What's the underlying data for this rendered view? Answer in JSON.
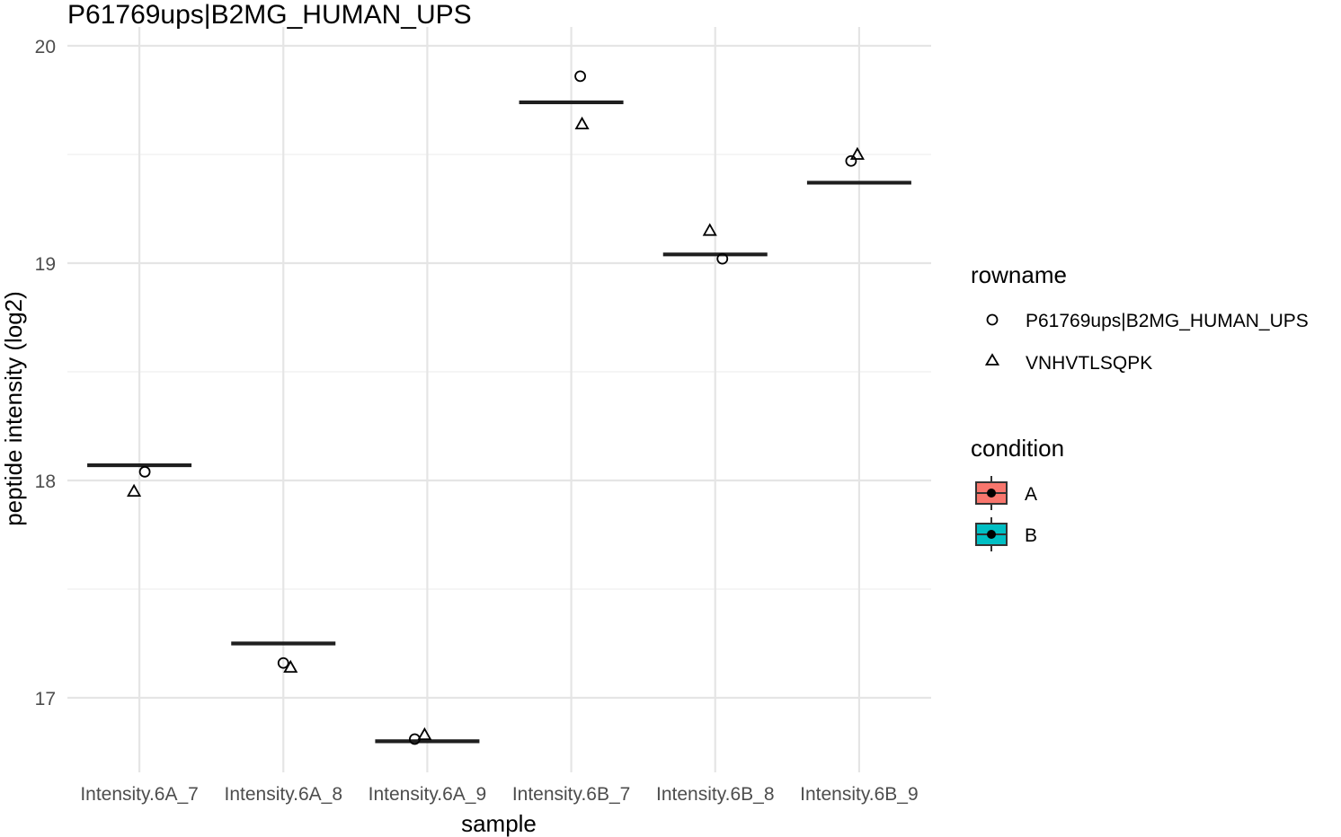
{
  "chart_data": {
    "type": "scatter",
    "title": "P61769ups|B2MG_HUMAN_UPS",
    "xlabel": "sample",
    "ylabel": "peptide intensity (log2)",
    "categories": [
      "Intensity.6A_7",
      "Intensity.6A_8",
      "Intensity.6A_9",
      "Intensity.6B_7",
      "Intensity.6B_8",
      "Intensity.6B_9"
    ],
    "condition": [
      "A",
      "A",
      "A",
      "B",
      "B",
      "B"
    ],
    "medians": [
      18.07,
      17.25,
      16.8,
      19.74,
      19.04,
      19.37
    ],
    "series": [
      {
        "name": "P61769ups|B2MG_HUMAN_UPS",
        "shape": "circle",
        "values": [
          18.04,
          17.16,
          16.81,
          19.86,
          19.02,
          19.47
        ]
      },
      {
        "name": "VNHVTLSQPK",
        "shape": "triangle",
        "values": [
          17.95,
          17.14,
          16.83,
          19.64,
          19.15,
          19.5
        ]
      }
    ],
    "ylim": [
      16.72,
      20.08
    ],
    "yticks": [
      17,
      18,
      19,
      20
    ],
    "grid": true,
    "legend_position": "right",
    "legend": {
      "rowname": {
        "title": "rowname",
        "items": [
          "P61769ups|B2MG_HUMAN_UPS",
          "VNHVTLSQPK"
        ]
      },
      "condition": {
        "title": "condition",
        "items": [
          {
            "label": "A",
            "color": "#F8766D"
          },
          {
            "label": "B",
            "color": "#00BFC4"
          }
        ]
      }
    }
  }
}
